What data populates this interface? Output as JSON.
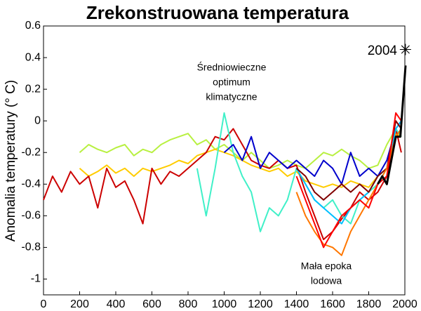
{
  "chart_data": {
    "type": "line",
    "title": "Zrekonstruowana temperatura",
    "y_label": "Anomalia temperatury (° C)",
    "xlim": [
      0,
      2000
    ],
    "xticks": [
      0,
      200,
      400,
      600,
      800,
      1000,
      1200,
      1400,
      1600,
      1800,
      2000
    ],
    "ylim": [
      -1.1,
      0.6
    ],
    "yticks": [
      -1,
      -0.8,
      -0.6,
      -0.4,
      -0.2,
      0,
      0.2,
      0.4,
      0.6
    ],
    "grid": false,
    "series": [
      {
        "color": "#b8f040",
        "x": [
          200,
          250,
          300,
          350,
          400,
          450,
          500,
          550,
          600,
          650,
          700,
          750,
          800,
          850,
          900,
          950,
          1000,
          1050,
          1100,
          1150,
          1200,
          1250,
          1300,
          1350,
          1400,
          1450,
          1500,
          1550,
          1600,
          1650,
          1700,
          1750,
          1800,
          1850,
          1900,
          1950,
          1980
        ],
        "values": [
          -0.2,
          -0.15,
          -0.18,
          -0.2,
          -0.17,
          -0.15,
          -0.22,
          -0.18,
          -0.2,
          -0.15,
          -0.12,
          -0.1,
          -0.08,
          -0.15,
          -0.12,
          -0.18,
          -0.15,
          -0.2,
          -0.25,
          -0.2,
          -0.25,
          -0.3,
          -0.28,
          -0.25,
          -0.28,
          -0.3,
          -0.25,
          -0.2,
          -0.22,
          -0.18,
          -0.22,
          -0.25,
          -0.3,
          -0.28,
          -0.15,
          -0.05,
          -0.1
        ]
      },
      {
        "color": "#ffcc00",
        "x": [
          200,
          250,
          300,
          350,
          400,
          450,
          500,
          550,
          600,
          650,
          700,
          750,
          800,
          850,
          900,
          950,
          1000,
          1050,
          1100,
          1150,
          1200,
          1250,
          1300,
          1350,
          1400,
          1450,
          1500,
          1550,
          1600,
          1650,
          1700,
          1750,
          1800,
          1850,
          1900,
          1950,
          1980
        ],
        "values": [
          -0.3,
          -0.35,
          -0.32,
          -0.28,
          -0.33,
          -0.3,
          -0.35,
          -0.3,
          -0.32,
          -0.3,
          -0.28,
          -0.25,
          -0.27,
          -0.22,
          -0.2,
          -0.18,
          -0.2,
          -0.22,
          -0.25,
          -0.28,
          -0.3,
          -0.32,
          -0.3,
          -0.35,
          -0.32,
          -0.38,
          -0.4,
          -0.42,
          -0.4,
          -0.42,
          -0.38,
          -0.4,
          -0.42,
          -0.35,
          -0.3,
          -0.08,
          -0.1
        ]
      },
      {
        "color": "#cc0000",
        "x": [
          0,
          50,
          100,
          150,
          200,
          250,
          300,
          350,
          400,
          450,
          500,
          550,
          600,
          650,
          700,
          750,
          800,
          850,
          900,
          950,
          1000,
          1050,
          1100,
          1150,
          1200,
          1250,
          1300,
          1350,
          1400,
          1450,
          1500,
          1550,
          1600,
          1650,
          1700,
          1750,
          1800,
          1850,
          1900,
          1950,
          1980
        ],
        "values": [
          -0.5,
          -0.35,
          -0.45,
          -0.32,
          -0.4,
          -0.35,
          -0.55,
          -0.3,
          -0.42,
          -0.38,
          -0.5,
          -0.65,
          -0.3,
          -0.4,
          -0.32,
          -0.35,
          -0.3,
          -0.25,
          -0.2,
          -0.1,
          -0.12,
          -0.05,
          -0.15,
          -0.25,
          -0.28,
          -0.3,
          -0.25,
          -0.3,
          -0.28,
          -0.45,
          -0.6,
          -0.75,
          -0.7,
          -0.62,
          -0.55,
          -0.45,
          -0.5,
          -0.45,
          -0.35,
          -0.05,
          -0.2
        ]
      },
      {
        "color": "#40f0c8",
        "x": [
          850,
          900,
          950,
          1000,
          1050,
          1100,
          1150,
          1200,
          1250,
          1300,
          1350,
          1400,
          1450,
          1500,
          1550,
          1600,
          1650,
          1700,
          1750,
          1800,
          1850,
          1900,
          1950,
          1980
        ],
        "values": [
          -0.3,
          -0.6,
          -0.3,
          0.05,
          -0.2,
          -0.35,
          -0.45,
          -0.7,
          -0.55,
          -0.6,
          -0.5,
          -0.3,
          -0.4,
          -0.5,
          -0.55,
          -0.5,
          -0.6,
          -0.65,
          -0.5,
          -0.45,
          -0.4,
          -0.3,
          -0.05,
          -0.1
        ]
      },
      {
        "color": "#0000cc",
        "x": [
          1000,
          1050,
          1100,
          1150,
          1200,
          1250,
          1300,
          1350,
          1400,
          1450,
          1500,
          1550,
          1600,
          1650,
          1700,
          1750,
          1800,
          1850,
          1900,
          1950,
          1980
        ],
        "values": [
          -0.2,
          -0.15,
          -0.25,
          -0.1,
          -0.3,
          -0.2,
          -0.25,
          -0.3,
          -0.25,
          -0.3,
          -0.35,
          -0.25,
          -0.3,
          -0.4,
          -0.2,
          -0.35,
          -0.3,
          -0.35,
          -0.25,
          -0.05,
          0
        ]
      },
      {
        "color": "#00bfff",
        "x": [
          1400,
          1450,
          1500,
          1550,
          1600,
          1650,
          1700,
          1750,
          1800,
          1850,
          1900,
          1950,
          1980
        ],
        "values": [
          -0.3,
          -0.4,
          -0.5,
          -0.55,
          -0.6,
          -0.65,
          -0.55,
          -0.5,
          -0.45,
          -0.35,
          -0.3,
          -0.05,
          0
        ]
      },
      {
        "color": "#800000",
        "x": [
          1400,
          1450,
          1500,
          1550,
          1600,
          1650,
          1700,
          1750,
          1800,
          1850,
          1900,
          1950,
          1980
        ],
        "values": [
          -0.3,
          -0.35,
          -0.45,
          -0.5,
          -0.45,
          -0.4,
          -0.45,
          -0.4,
          -0.45,
          -0.35,
          -0.3,
          0,
          -0.05
        ]
      },
      {
        "color": "#ff7700",
        "x": [
          1400,
          1450,
          1500,
          1550,
          1600,
          1650,
          1700,
          1750,
          1800,
          1850,
          1900,
          1950,
          1980
        ],
        "values": [
          -0.45,
          -0.6,
          -0.7,
          -0.78,
          -0.8,
          -0.85,
          -0.7,
          -0.6,
          -0.5,
          -0.4,
          -0.3,
          -0.1,
          -0.05
        ]
      },
      {
        "color": "#ff0000",
        "x": [
          1400,
          1450,
          1500,
          1550,
          1600,
          1650,
          1700,
          1750,
          1800,
          1850,
          1900,
          1950,
          1980
        ],
        "values": [
          -0.35,
          -0.5,
          -0.65,
          -0.8,
          -0.7,
          -0.6,
          -0.55,
          -0.5,
          -0.55,
          -0.4,
          -0.35,
          0.05,
          0
        ]
      },
      {
        "color": "#000000",
        "x": [
          1850,
          1875,
          1900,
          1925,
          1950,
          1975,
          2004
        ],
        "values": [
          -0.4,
          -0.35,
          -0.4,
          -0.25,
          -0.1,
          -0.1,
          0.35
        ]
      }
    ],
    "highlight": {
      "label": "2004",
      "x": 2004,
      "y": 0.45
    },
    "annotations": [
      {
        "lines": [
          "Średniowieczne",
          "optimum",
          "klimatyczne"
        ]
      },
      {
        "lines": [
          "Mała epoka",
          "lodowa"
        ]
      }
    ]
  }
}
